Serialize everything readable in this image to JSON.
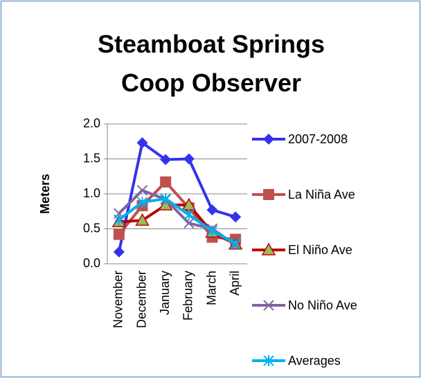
{
  "chart_data": {
    "type": "line",
    "title": "Steamboat Springs Coop Observer",
    "ylabel": "Meters",
    "categories": [
      "November",
      "December",
      "January",
      "February",
      "March",
      "April"
    ],
    "series": [
      {
        "name": "2007-2008",
        "color": "#3333ee",
        "marker": "diamond",
        "values": [
          0.17,
          1.73,
          1.49,
          1.5,
          0.77,
          0.67
        ]
      },
      {
        "name": "La Niña Ave",
        "color": "#c0504d",
        "marker": "square",
        "values": [
          0.42,
          0.83,
          1.17,
          0.8,
          0.38,
          0.35
        ]
      },
      {
        "name": "El Niño Ave",
        "color": "#c00000",
        "marker": "triangle",
        "values": [
          0.6,
          0.62,
          0.84,
          0.84,
          0.45,
          0.28
        ]
      },
      {
        "name": "No Niño Ave",
        "color": "#8064a2",
        "marker": "x",
        "values": [
          0.72,
          1.05,
          0.92,
          0.58,
          0.5,
          0.27
        ]
      },
      {
        "name": "Averages",
        "color": "#00b0f0",
        "marker": "asterisk",
        "values": [
          0.63,
          0.88,
          0.93,
          0.7,
          0.47,
          0.29
        ]
      }
    ],
    "ylim": [
      0,
      2
    ],
    "yticks": [
      {
        "value": 0,
        "label": "0.0"
      },
      {
        "value": 0.5,
        "label": "0.5"
      },
      {
        "value": 1,
        "label": "1.0"
      },
      {
        "value": 1.5,
        "label": "1.5"
      },
      {
        "value": 2,
        "label": "2.0"
      }
    ],
    "grid": true,
    "legend": "right"
  }
}
